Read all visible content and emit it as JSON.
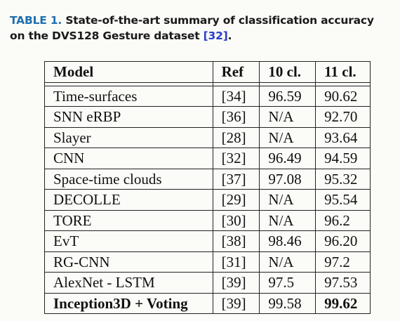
{
  "caption": {
    "label": "TABLE 1.",
    "text": "State-of-the-art summary of classification accuracy on the DVS128 Gesture dataset",
    "ref": "[32]",
    "end": "."
  },
  "table": {
    "headers": [
      "Model",
      "Ref",
      "10 cl.",
      "11 cl."
    ],
    "rows": [
      {
        "model": "Time-surfaces",
        "ref": "[34]",
        "cl10": "96.59",
        "cl11": "90.62"
      },
      {
        "model": "SNN eRBP",
        "ref": "[36]",
        "cl10": "N/A",
        "cl11": "92.70"
      },
      {
        "model": "Slayer",
        "ref": "[28]",
        "cl10": "N/A",
        "cl11": "93.64"
      },
      {
        "model": "CNN",
        "ref": "[32]",
        "cl10": "96.49",
        "cl11": "94.59"
      },
      {
        "model": "Space-time clouds",
        "ref": "[37]",
        "cl10": "97.08",
        "cl11": "95.32"
      },
      {
        "model": "DECOLLE",
        "ref": "[29]",
        "cl10": "N/A",
        "cl11": "95.54"
      },
      {
        "model": "TORE",
        "ref": "[30]",
        "cl10": "N/A",
        "cl11": "96.2"
      },
      {
        "model": "EvT",
        "ref": "[38]",
        "cl10": "98.46",
        "cl11": "96.20"
      },
      {
        "model": "RG-CNN",
        "ref": "[31]",
        "cl10": "N/A",
        "cl11": "97.2"
      },
      {
        "model": "AlexNet - LSTM",
        "ref": "[39]",
        "cl10": "97.5",
        "cl11": "97.53"
      },
      {
        "model": "Inception3D + Voting",
        "ref": "[39]",
        "cl10": "99.58",
        "cl11": "99.62"
      }
    ]
  },
  "colors": {
    "label": "#1f6fae",
    "ref_link": "#2a3fc8",
    "text": "#111111"
  }
}
